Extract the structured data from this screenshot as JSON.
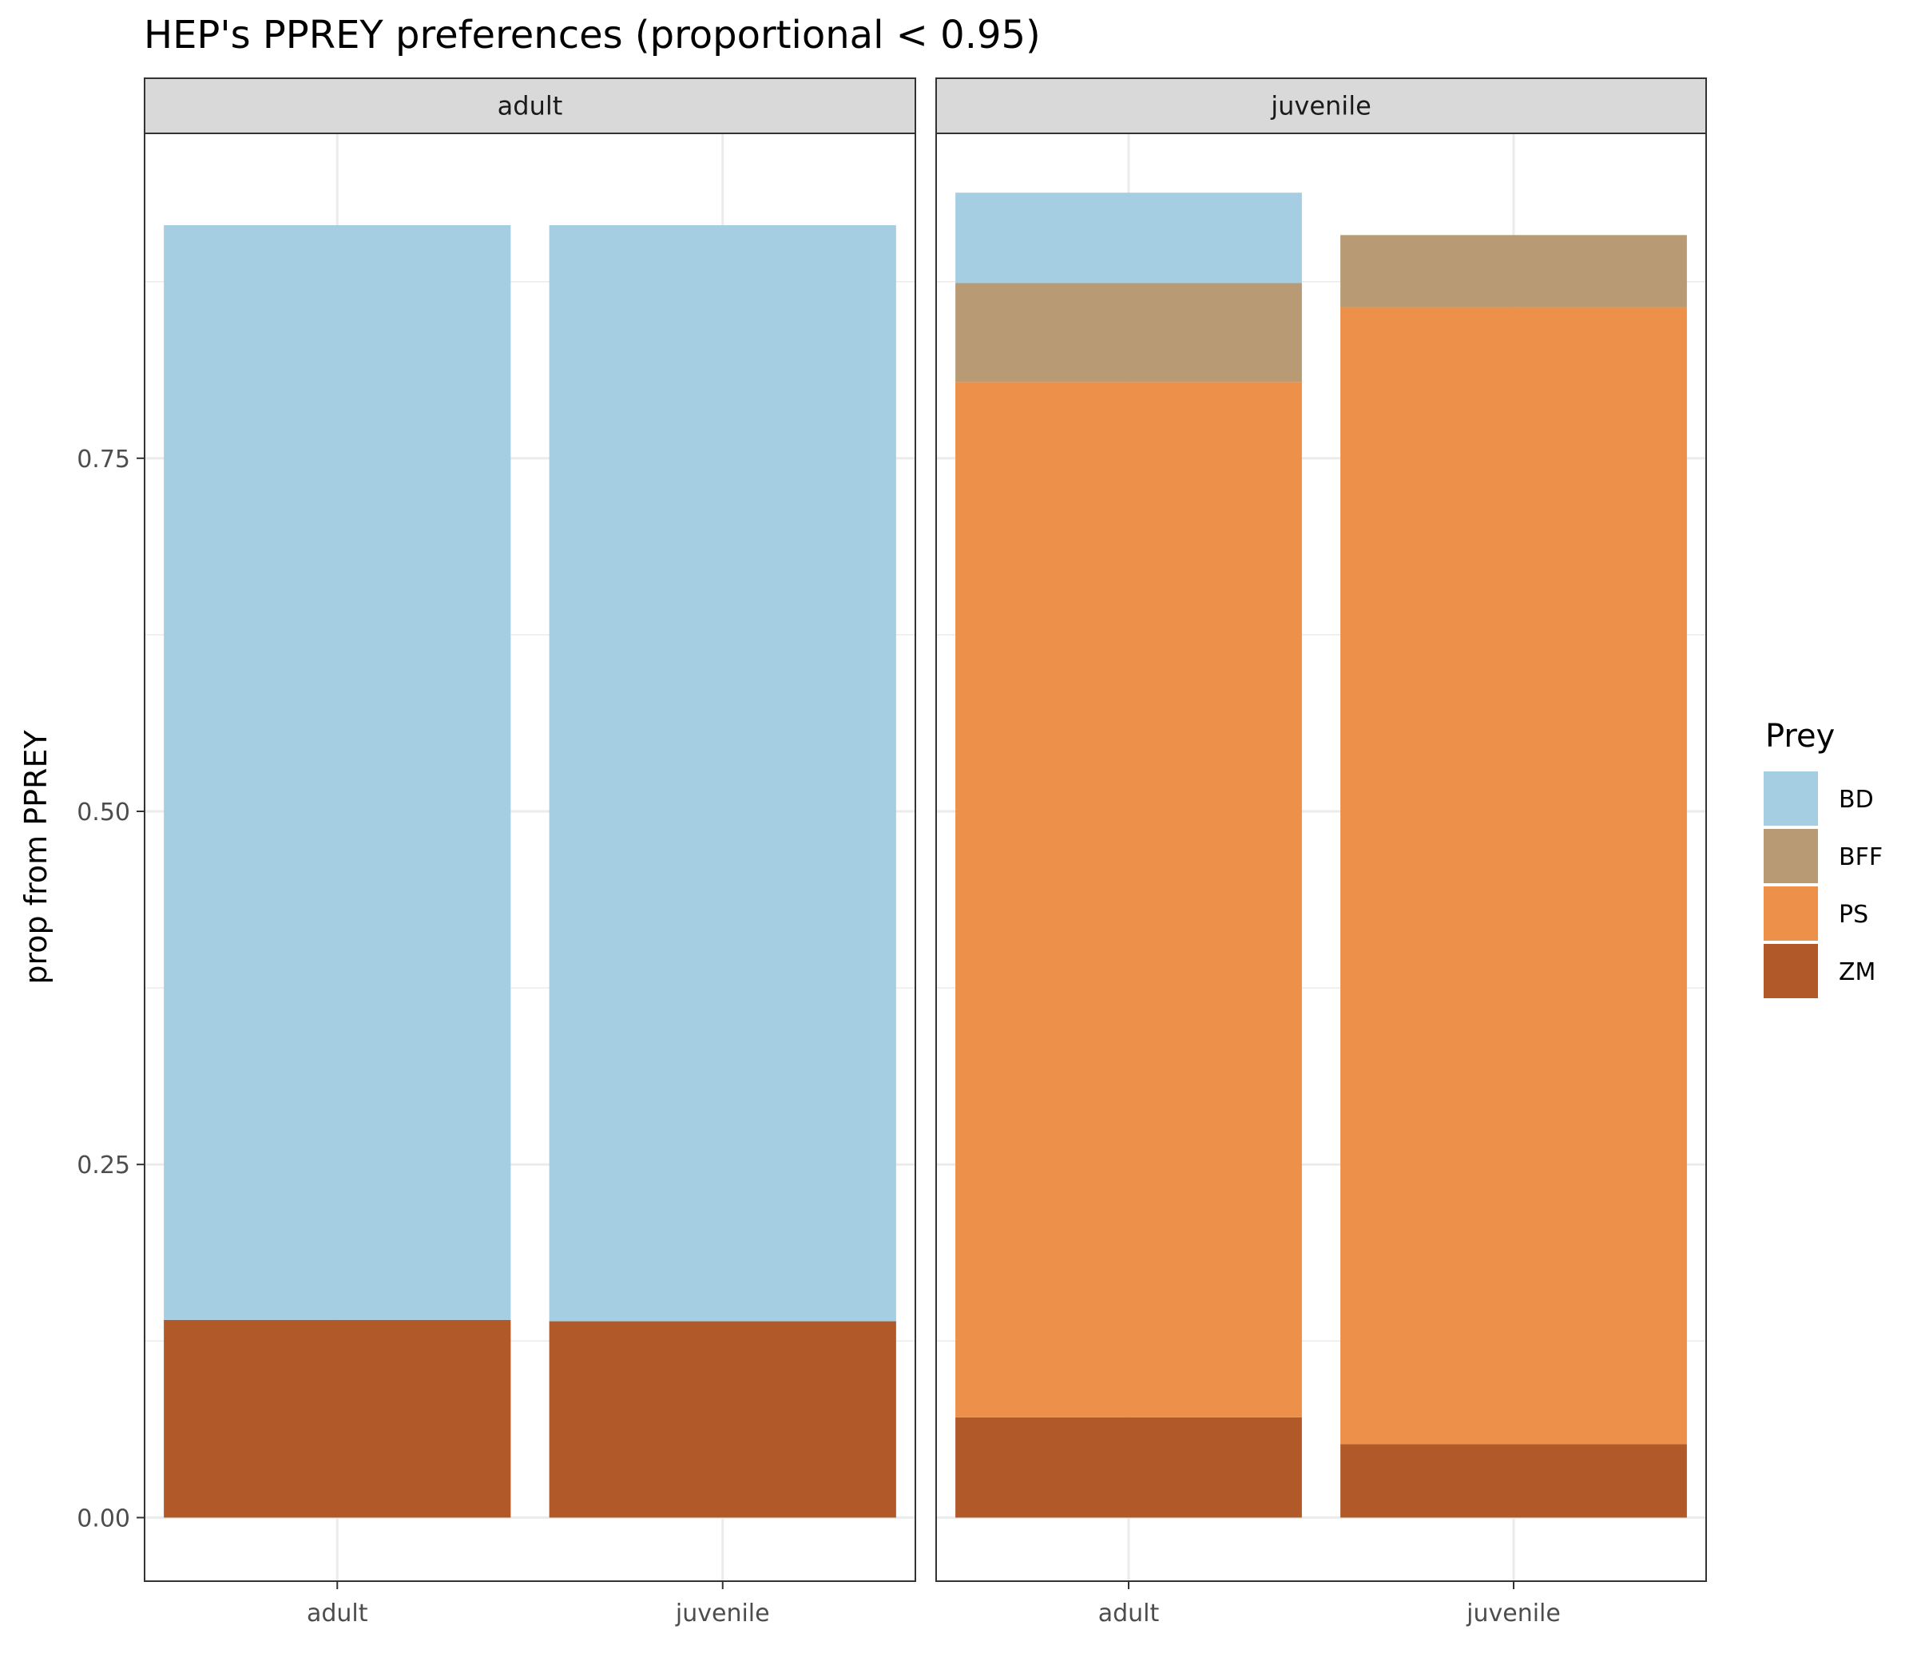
{
  "chart_data": {
    "type": "bar",
    "stacked": true,
    "title": "HEP's PPREY preferences (proportional < 0.95)",
    "ylabel": "prop from PPREY",
    "xlabel": "",
    "ylim": [
      -0.045,
      0.98
    ],
    "y_ticks": [
      0.0,
      0.25,
      0.5,
      0.75
    ],
    "y_tick_labels": [
      "0.00",
      "0.25",
      "0.50",
      "0.75"
    ],
    "grid": true,
    "categories": [
      "adult",
      "juvenile"
    ],
    "legend": {
      "title": "Prey",
      "placement": "right",
      "entries": [
        {
          "name": "BD",
          "color": "#a6cee3"
        },
        {
          "name": "BFF",
          "color": "#b89b74"
        },
        {
          "name": "PS",
          "color": "#ed9049"
        },
        {
          "name": "ZM",
          "color": "#b15928"
        }
      ]
    },
    "facets": [
      {
        "label": "adult",
        "series": [
          {
            "name": "ZM",
            "values": [
              0.14,
              0.139
            ]
          },
          {
            "name": "PS",
            "values": [
              0,
              0
            ]
          },
          {
            "name": "BFF",
            "values": [
              0,
              0
            ]
          },
          {
            "name": "BD",
            "values": [
              0.775,
              0.776
            ]
          }
        ]
      },
      {
        "label": "juvenile",
        "series": [
          {
            "name": "ZM",
            "values": [
              0.071,
              0.052
            ]
          },
          {
            "name": "PS",
            "values": [
              0.733,
              0.805
            ]
          },
          {
            "name": "BFF",
            "values": [
              0.07,
              0.051
            ]
          },
          {
            "name": "BD",
            "values": [
              0.064,
              0
            ]
          }
        ]
      }
    ]
  }
}
